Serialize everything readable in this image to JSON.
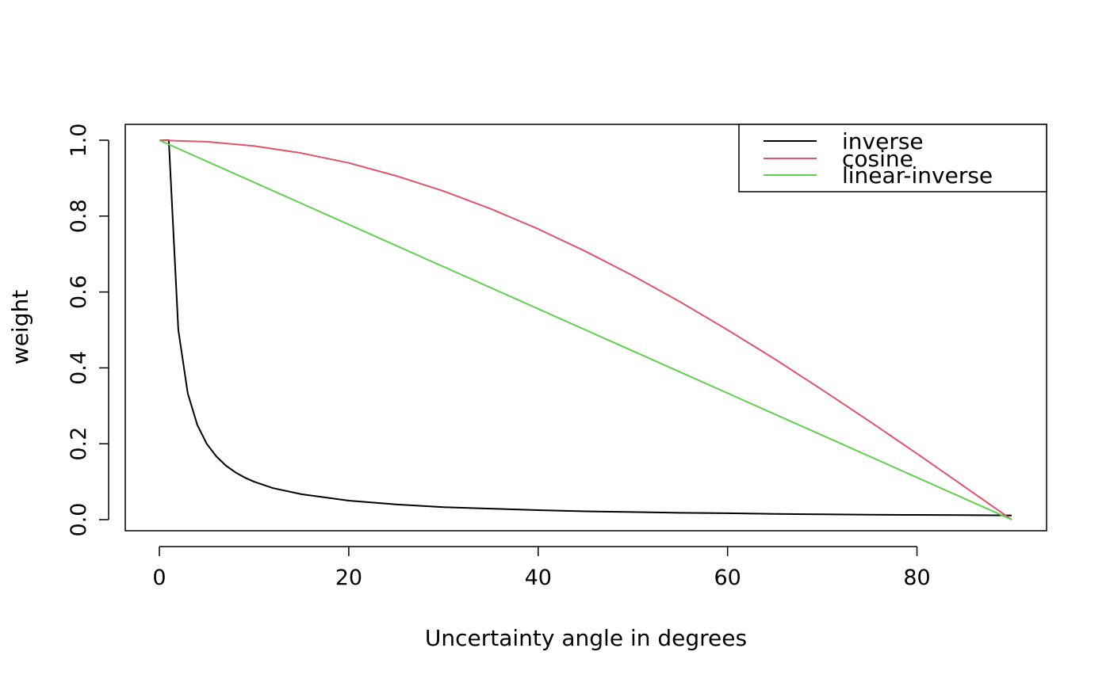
{
  "chart_data": {
    "type": "line",
    "title": "",
    "xlabel": "Uncertainty angle in degrees",
    "ylabel": "weight",
    "xlim": [
      0,
      90
    ],
    "ylim": [
      0,
      1
    ],
    "x_ticks": [
      0,
      20,
      40,
      60,
      80
    ],
    "y_ticks": [
      0.0,
      0.2,
      0.4,
      0.6,
      0.8,
      1.0
    ],
    "x_tick_labels": [
      "0",
      "20",
      "40",
      "60",
      "80"
    ],
    "y_tick_labels": [
      "0.0",
      "0.2",
      "0.4",
      "0.6",
      "0.8",
      "1.0"
    ],
    "grid": false,
    "legend_position": "top-right",
    "series": [
      {
        "name": "inverse",
        "color": "#000000",
        "x": [
          0,
          1,
          2,
          3,
          4,
          5,
          6,
          7,
          8,
          9,
          10,
          12,
          15,
          20,
          25,
          30,
          35,
          40,
          45,
          50,
          55,
          60,
          65,
          70,
          75,
          80,
          85,
          90
        ],
        "y": [
          1,
          1,
          0.5,
          0.333,
          0.25,
          0.2,
          0.167,
          0.143,
          0.125,
          0.111,
          0.1,
          0.083,
          0.067,
          0.05,
          0.04,
          0.033,
          0.029,
          0.025,
          0.022,
          0.02,
          0.018,
          0.017,
          0.015,
          0.014,
          0.013,
          0.0125,
          0.012,
          0.011
        ]
      },
      {
        "name": "cosine",
        "color": "#df536b",
        "x": [
          0,
          5,
          10,
          15,
          20,
          25,
          30,
          35,
          40,
          45,
          50,
          55,
          60,
          65,
          70,
          75,
          80,
          85,
          90
        ],
        "y": [
          1,
          0.996,
          0.985,
          0.966,
          0.94,
          0.906,
          0.866,
          0.819,
          0.766,
          0.707,
          0.643,
          0.574,
          0.5,
          0.423,
          0.342,
          0.259,
          0.174,
          0.087,
          0
        ]
      },
      {
        "name": "linear-inverse",
        "color": "#61d04f",
        "x": [
          0,
          90
        ],
        "y": [
          1,
          0
        ]
      }
    ]
  }
}
